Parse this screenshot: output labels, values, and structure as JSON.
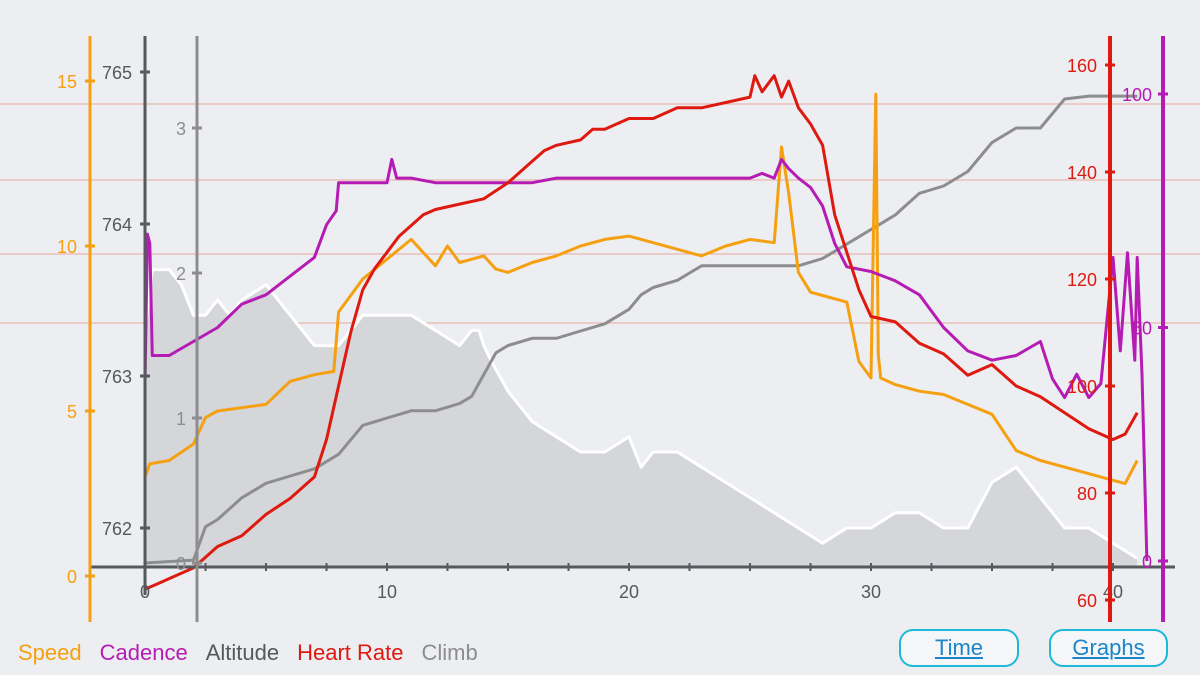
{
  "legend": {
    "speed": "Speed",
    "cadence": "Cadence",
    "altitude": "Altitude",
    "heart_rate": "Heart Rate",
    "climb": "Climb"
  },
  "buttons": {
    "time": "Time",
    "graphs": "Graphs"
  },
  "colors": {
    "background": "#eceef1",
    "speed": "#f5a011",
    "cadence": "#b51cb3",
    "altitude": "#55585c",
    "heart_rate": "#de1a10",
    "climb": "#8d8d8f",
    "climb_fill": "#d4d6da",
    "altitude_line": "#ffffff",
    "grid": "#e8a8a0",
    "button_border": "#1fb8d8",
    "button_text": "#1d84c9"
  },
  "chart_data": {
    "type": "line",
    "x_axis": {
      "ticks": [
        0,
        10,
        20,
        30,
        40
      ],
      "range": [
        0,
        42
      ]
    },
    "axes": {
      "speed": {
        "ticks": [
          0,
          5,
          10,
          15
        ],
        "range": [
          -1.2,
          16.7
        ]
      },
      "altitude": {
        "ticks": [
          762,
          763,
          764,
          765
        ],
        "range": [
          761.75,
          765.4
        ]
      },
      "climb": {
        "ticks": [
          0,
          1,
          2,
          3
        ],
        "range": [
          -0.05,
          3.3
        ]
      },
      "heart_rate": {
        "ticks": [
          60,
          80,
          100,
          120,
          140,
          160
        ],
        "range": [
          57,
          167
        ]
      },
      "cadence": {
        "ticks": [
          0,
          50,
          100
        ],
        "range": [
          -8,
          114
        ]
      }
    },
    "series": [
      {
        "name": "Speed",
        "axis": "speed",
        "x": [
          0,
          0.2,
          1,
          2,
          2.5,
          3,
          4,
          5,
          6,
          7,
          7.8,
          8,
          8.5,
          9,
          10,
          10.5,
          11,
          12,
          12.5,
          13,
          14,
          14.5,
          15,
          16,
          17,
          18,
          19,
          20,
          21,
          22,
          23,
          24,
          25,
          26,
          26.3,
          26.6,
          27,
          27.5,
          28,
          29,
          29.5,
          30,
          30.2,
          30.3,
          30.4,
          31,
          32,
          33,
          34,
          35,
          36,
          37,
          38,
          39,
          40,
          40.5,
          41
        ],
        "y": [
          3,
          3.4,
          3.5,
          4,
          4.8,
          5,
          5.1,
          5.2,
          5.9,
          6.1,
          6.2,
          8,
          8.5,
          9,
          9.6,
          9.9,
          10.2,
          9.4,
          10,
          9.5,
          9.7,
          9.3,
          9.2,
          9.5,
          9.7,
          10,
          10.2,
          10.3,
          10.1,
          9.9,
          9.7,
          10,
          10.2,
          10.1,
          13,
          11.6,
          9.2,
          8.6,
          8.5,
          8.3,
          6.5,
          6,
          14.6,
          6.7,
          6,
          5.8,
          5.6,
          5.5,
          5.2,
          4.9,
          3.8,
          3.5,
          3.3,
          3.1,
          2.9,
          2.8,
          3.5
        ]
      },
      {
        "name": "Cadence",
        "axis": "cadence",
        "x": [
          0,
          0.1,
          0.2,
          0.3,
          1,
          2,
          3,
          4,
          5,
          6,
          7,
          7.5,
          7.9,
          8,
          9,
          10,
          10.2,
          10.4,
          11,
          12,
          13,
          14,
          15,
          16,
          17,
          18,
          19,
          20,
          21,
          22,
          23,
          24,
          25,
          25.5,
          26,
          26.3,
          26.6,
          27,
          27.5,
          28,
          28.5,
          29,
          30,
          31,
          32,
          33,
          34,
          35,
          36,
          37,
          37.5,
          38,
          38.5,
          39,
          39.5,
          40,
          40.3,
          40.6,
          40.9,
          41,
          41.2,
          41.4
        ],
        "y": [
          38,
          70,
          68,
          44,
          44,
          47,
          50,
          55,
          57,
          61,
          65,
          72,
          75,
          81,
          81,
          81,
          86,
          82,
          82,
          81,
          81,
          81,
          81,
          81,
          82,
          82,
          82,
          82,
          82,
          82,
          82,
          82,
          82,
          83,
          82,
          86,
          84,
          82,
          80,
          76,
          68,
          63,
          62,
          60,
          57,
          50,
          45,
          43,
          44,
          47,
          39,
          35,
          40,
          35,
          38,
          65,
          45,
          66,
          43,
          65,
          40,
          0
        ]
      },
      {
        "name": "Altitude",
        "axis": "altitude",
        "x": [
          0,
          0.3,
          0.5,
          1,
          1.5,
          2,
          2.5,
          3,
          3.5,
          4,
          5,
          6,
          7,
          8,
          8.5,
          9,
          10,
          11,
          12,
          13,
          13.5,
          13.8,
          14,
          14.3,
          15,
          16,
          17,
          18,
          19,
          20,
          20.5,
          21,
          22,
          23,
          24,
          25,
          26,
          27,
          28,
          29,
          30,
          31,
          32,
          33,
          34,
          35,
          36,
          37,
          38,
          39,
          40,
          41
        ],
        "y": [
          763.3,
          763.7,
          763.7,
          763.7,
          763.6,
          763.4,
          763.4,
          763.5,
          763.4,
          763.5,
          763.6,
          763.4,
          763.2,
          763.2,
          763.3,
          763.4,
          763.4,
          763.4,
          763.3,
          763.2,
          763.3,
          763.3,
          763.2,
          763.1,
          762.9,
          762.7,
          762.6,
          762.5,
          762.5,
          762.6,
          762.4,
          762.5,
          762.5,
          762.4,
          762.3,
          762.2,
          762.1,
          762.0,
          761.9,
          762.0,
          762.0,
          762.1,
          762.1,
          762.0,
          762.0,
          762.3,
          762.4,
          762.2,
          762.0,
          762.0,
          761.9,
          761.8
        ]
      },
      {
        "name": "Heart Rate",
        "axis": "heart_rate",
        "x": [
          0,
          0.5,
          1,
          1.5,
          2,
          2.5,
          3,
          4,
          5,
          6,
          7,
          7.5,
          8,
          8.5,
          9,
          9.5,
          10,
          10.5,
          11,
          11.5,
          12,
          13,
          14,
          15,
          15.5,
          16,
          16.5,
          17,
          18,
          18.5,
          19,
          20,
          21,
          22,
          23,
          24,
          25,
          25.2,
          25.5,
          26,
          26.3,
          26.6,
          27,
          27.5,
          28,
          28.5,
          29,
          29.5,
          30,
          31,
          32,
          33,
          34,
          35,
          36,
          37,
          38,
          39,
          40,
          40.5,
          41
        ],
        "y": [
          62,
          63,
          64,
          65,
          66,
          68,
          70,
          72,
          76,
          79,
          83,
          90,
          100,
          110,
          118,
          122,
          125,
          128,
          130,
          132,
          133,
          134,
          135,
          138,
          140,
          142,
          144,
          145,
          146,
          148,
          148,
          150,
          150,
          152,
          152,
          153,
          154,
          158,
          155,
          158,
          154,
          157,
          152,
          149,
          145,
          132,
          125,
          118,
          113,
          112,
          108,
          106,
          102,
          104,
          100,
          98,
          95,
          92,
          90,
          91,
          95
        ]
      },
      {
        "name": "Climb",
        "axis": "climb",
        "x": [
          0,
          2,
          2.5,
          3,
          4,
          5,
          6,
          7,
          8,
          9,
          10,
          11,
          12,
          13,
          13.5,
          14,
          14.5,
          15,
          16,
          17,
          18,
          19,
          20,
          20.5,
          21,
          22,
          22.5,
          23,
          24,
          25,
          26,
          27,
          28,
          28.5,
          29,
          29.5,
          30,
          30.5,
          31,
          32,
          33,
          34,
          35,
          36,
          37,
          37.5,
          38,
          39,
          40,
          41
        ],
        "y": [
          0,
          0.02,
          0.25,
          0.3,
          0.45,
          0.55,
          0.6,
          0.65,
          0.75,
          0.95,
          1.0,
          1.05,
          1.05,
          1.1,
          1.15,
          1.3,
          1.45,
          1.5,
          1.55,
          1.55,
          1.6,
          1.65,
          1.75,
          1.85,
          1.9,
          1.95,
          2.0,
          2.05,
          2.05,
          2.05,
          2.05,
          2.05,
          2.1,
          2.15,
          2.2,
          2.25,
          2.3,
          2.35,
          2.4,
          2.55,
          2.6,
          2.7,
          2.9,
          3.0,
          3.0,
          3.1,
          3.2,
          3.22,
          3.22,
          3.22
        ]
      }
    ],
    "grid": "horizontal lines at heart rate 100, 120, 140, 160",
    "legend_position": "bottom-left"
  }
}
